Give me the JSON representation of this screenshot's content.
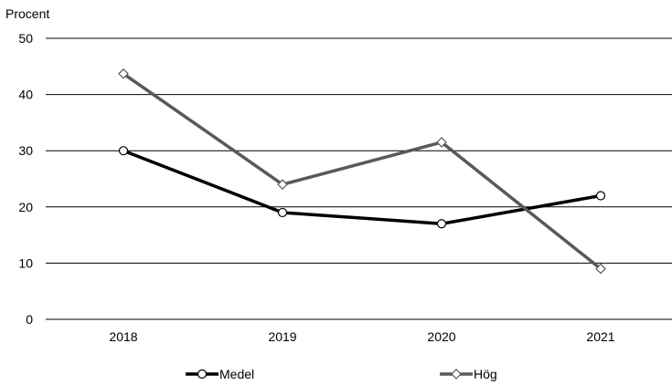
{
  "chart_data": {
    "type": "line",
    "ylabel": "Procent",
    "ylim": [
      0,
      50
    ],
    "yticks": [
      0,
      10,
      20,
      30,
      40,
      50
    ],
    "categories": [
      "2018",
      "2019",
      "2020",
      "2021"
    ],
    "grid": "horizontal",
    "legend_position": "bottom",
    "series": [
      {
        "name": "Medel",
        "values": [
          30,
          19,
          17,
          22
        ],
        "color": "#000000",
        "marker": "circle"
      },
      {
        "name": "Hög",
        "values": [
          43.7,
          24,
          31.5,
          9
        ],
        "color": "#595959",
        "marker": "diamond"
      }
    ]
  }
}
